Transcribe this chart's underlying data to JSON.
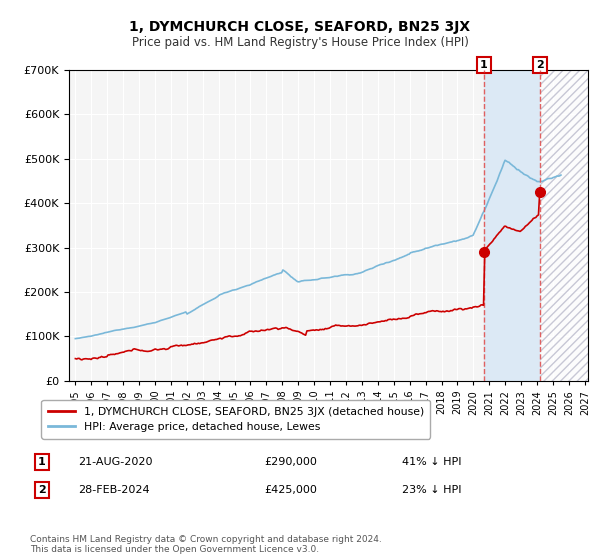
{
  "title": "1, DYMCHURCH CLOSE, SEAFORD, BN25 3JX",
  "subtitle": "Price paid vs. HM Land Registry's House Price Index (HPI)",
  "ylim": [
    0,
    700000
  ],
  "yticks": [
    0,
    100000,
    200000,
    300000,
    400000,
    500000,
    600000,
    700000
  ],
  "hpi_color": "#7ab8d9",
  "price_color": "#cc0000",
  "marker1_year": 2020.65,
  "marker1_price": 290000,
  "marker2_year": 2024.17,
  "marker2_price": 425000,
  "highlight_color": "#dce9f5",
  "hatch_region_start": 2024.17,
  "hatch_region_end": 2027.2,
  "vline_color": "#e06060",
  "legend_line1": "1, DYMCHURCH CLOSE, SEAFORD, BN25 3JX (detached house)",
  "legend_line2": "HPI: Average price, detached house, Lewes",
  "footnote": "Contains HM Land Registry data © Crown copyright and database right 2024.\nThis data is licensed under the Open Government Licence v3.0.",
  "background_color": "#ffffff",
  "plot_bg_color": "#f5f5f5",
  "xlim_left": 1994.6,
  "xlim_right": 2027.2
}
